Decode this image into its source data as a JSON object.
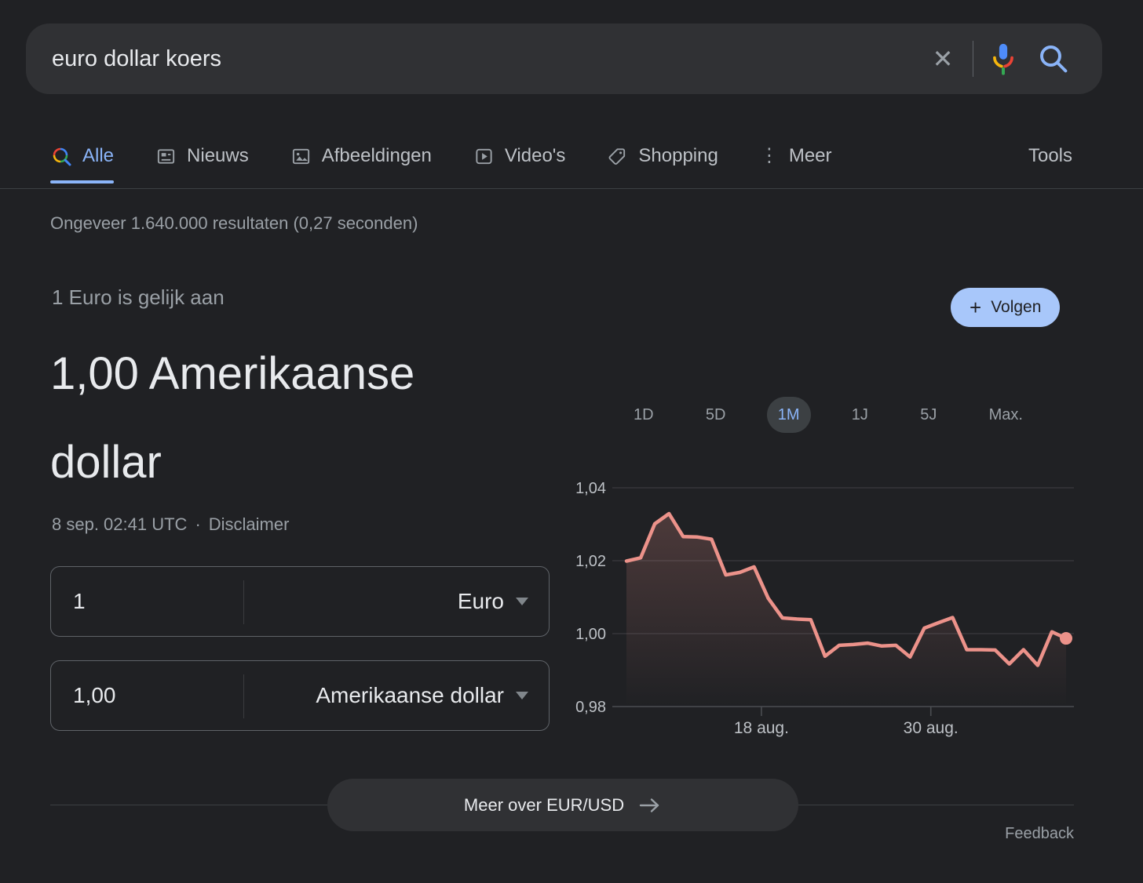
{
  "search_bar": {
    "query": "euro dollar koers"
  },
  "icons": {
    "close": "✕",
    "more_dots": "⋮",
    "plus": "+",
    "middot": "·"
  },
  "tabs": [
    {
      "label": "Alle",
      "active": true
    },
    {
      "label": "Nieuws",
      "active": false
    },
    {
      "label": "Afbeeldingen",
      "active": false
    },
    {
      "label": "Video's",
      "active": false
    },
    {
      "label": "Shopping",
      "active": false
    },
    {
      "label": "Meer",
      "active": false
    }
  ],
  "tools_label": "Tools",
  "result_stats": "Ongeveer 1.640.000 resultaten (0,27 seconden)",
  "converter": {
    "subtitle": "1 Euro is gelijk aan",
    "headline": "1,00 Amerikaanse dollar",
    "timestamp": "8 sep. 02:41 UTC",
    "disclaimer": "Disclaimer",
    "follow_label": "Volgen",
    "from_amount": "1",
    "from_currency": "Euro",
    "to_amount": "1,00",
    "to_currency": "Amerikaanse dollar"
  },
  "chart_data": {
    "type": "area",
    "ranges": [
      "1D",
      "5D",
      "1M",
      "1J",
      "5J",
      "Max."
    ],
    "selected_range": "1M",
    "values": [
      1.0199,
      1.0208,
      1.0301,
      1.0329,
      1.0266,
      1.0265,
      1.0259,
      1.0161,
      1.0168,
      1.0183,
      1.0097,
      1.0043,
      1.004,
      1.0038,
      0.9938,
      0.9968,
      0.997,
      0.9974,
      0.9966,
      0.9968,
      0.9936,
      1.0015,
      1.003,
      1.0044,
      0.9956,
      0.9956,
      0.9955,
      0.9917,
      0.9956,
      0.9913,
      1.0005,
      0.9987
    ],
    "ylim": [
      0.98,
      1.04
    ],
    "y_ticks": [
      {
        "label": "1,04",
        "value": 1.04
      },
      {
        "label": "1,02",
        "value": 1.02
      },
      {
        "label": "1,00",
        "value": 1.0
      },
      {
        "label": "0,98",
        "value": 0.98
      }
    ],
    "x_ticks": [
      {
        "label": "18 aug.",
        "fraction": 0.323
      },
      {
        "label": "30 aug.",
        "fraction": 0.69
      }
    ],
    "grid": true,
    "legend": false,
    "end_dot": true,
    "line_color": "#ec928a",
    "fill_color_top": "rgba(236,146,138,0.22)",
    "fill_color_bottom": "rgba(236,146,138,0)"
  },
  "footer": {
    "more_label": "Meer over EUR/USD",
    "feedback_label": "Feedback"
  },
  "colors": {
    "accent_blue": "#8ab4f8",
    "follow_bg": "#a8c7fa",
    "background": "#202124",
    "surface": "#303134"
  }
}
